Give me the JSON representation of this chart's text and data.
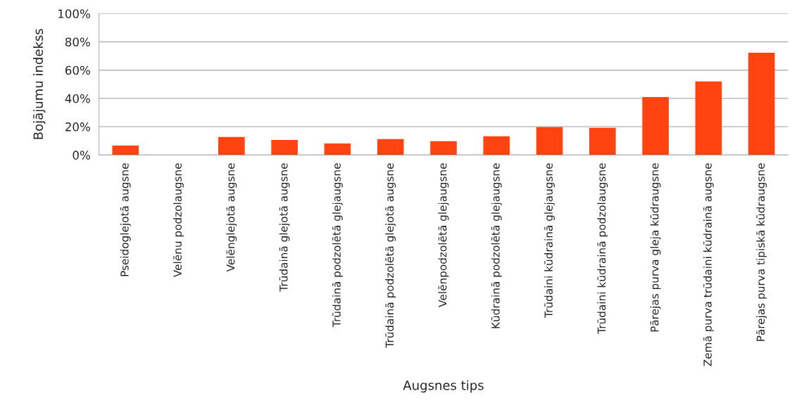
{
  "chart_data": {
    "type": "bar",
    "xlabel": "Augsnes tips",
    "ylabel": "Bojājumu indekss",
    "categories": [
      "Pseidoglejotā augsne",
      "Velēnu podzolaugsne",
      "Velēnglejotā augsne",
      "Trūdainā glejotā augsne",
      "Trūdainā podzolētā glejaugsne",
      "Trūdainā podzolētā glejotā augsne",
      "Velēnpodzolētā glejaugsne",
      "Kūdrainā podzolētā glejaugsne",
      "Trūdaini kūdrainā glejaugsne",
      "Trūdaini kūdrainā podzolaugsne",
      "Pārejas purva gleja kūdraugsne",
      "Zemā purva trūdaini kūdrainā augsne",
      "Pārejas purva tipiskā kūdraugsne"
    ],
    "values": [
      6.6,
      0,
      12.7,
      10.6,
      8.2,
      11.2,
      9.8,
      13.2,
      19.7,
      19.2,
      41,
      52,
      72.3
    ],
    "color": "#ff4411",
    "ylim": [
      0,
      100
    ],
    "yticks": [
      {
        "value": 0,
        "label": "0%"
      },
      {
        "value": 20,
        "label": "20%"
      },
      {
        "value": 40,
        "label": "40%"
      },
      {
        "value": 60,
        "label": "60%"
      },
      {
        "value": 80,
        "label": "80%"
      },
      {
        "value": 100,
        "label": "100%"
      }
    ],
    "grid": "y"
  }
}
